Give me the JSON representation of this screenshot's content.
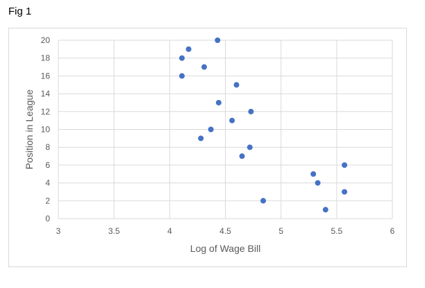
{
  "figure": {
    "label": "Fig 1"
  },
  "chart_data": {
    "type": "scatter",
    "title": "",
    "xlabel": "Log of Wage Bill",
    "ylabel": "Position in League",
    "xlim": [
      3,
      6
    ],
    "ylim": [
      0,
      20
    ],
    "xticks": [
      "3",
      "3.5",
      "4",
      "4.5",
      "5",
      "5.5",
      "6"
    ],
    "yticks": [
      "0",
      "2",
      "4",
      "6",
      "8",
      "10",
      "12",
      "14",
      "16",
      "18",
      "20"
    ],
    "grid": "major",
    "legend": "none",
    "marker_color": "#4472C4",
    "gridline_color": "#d9d9d9",
    "series": [
      {
        "points": [
          {
            "x": 4.43,
            "y": 20
          },
          {
            "x": 4.17,
            "y": 19
          },
          {
            "x": 4.11,
            "y": 18
          },
          {
            "x": 4.31,
            "y": 17
          },
          {
            "x": 4.11,
            "y": 16
          },
          {
            "x": 4.6,
            "y": 15
          },
          {
            "x": 4.44,
            "y": 13
          },
          {
            "x": 4.73,
            "y": 12
          },
          {
            "x": 4.56,
            "y": 11
          },
          {
            "x": 4.37,
            "y": 10
          },
          {
            "x": 4.28,
            "y": 9
          },
          {
            "x": 4.72,
            "y": 8
          },
          {
            "x": 4.65,
            "y": 7
          },
          {
            "x": 5.57,
            "y": 6
          },
          {
            "x": 5.29,
            "y": 5
          },
          {
            "x": 5.33,
            "y": 4
          },
          {
            "x": 5.57,
            "y": 3
          },
          {
            "x": 4.84,
            "y": 2
          },
          {
            "x": 5.4,
            "y": 1
          }
        ]
      }
    ]
  }
}
